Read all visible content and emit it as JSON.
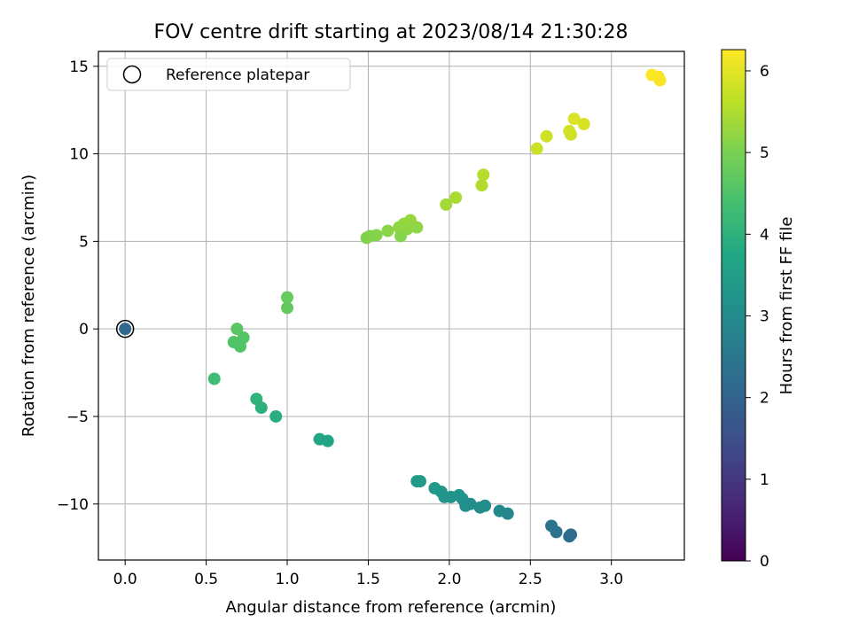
{
  "chart_data": {
    "type": "scatter",
    "title": "FOV centre drift starting at 2023/08/14 21:30:28",
    "xlabel": "Angular distance from reference (arcmin)",
    "ylabel": "Rotation from reference (arcmin)",
    "xlim": [
      -0.165,
      3.45
    ],
    "ylim": [
      -13.2,
      15.85
    ],
    "xticks": [
      0.0,
      0.5,
      1.0,
      1.5,
      2.0,
      2.5,
      3.0
    ],
    "xtick_labels": [
      "0.0",
      "0.5",
      "1.0",
      "1.5",
      "2.0",
      "2.5",
      "3.0"
    ],
    "yticks": [
      -10,
      -5,
      0,
      5,
      10,
      15
    ],
    "ytick_labels": [
      "−10",
      "−5",
      "0",
      "5",
      "10",
      "15"
    ],
    "grid": true,
    "legend": {
      "position": "top-left",
      "entries": [
        "Reference platepar"
      ]
    },
    "colorbar": {
      "label": "Hours from first FF file",
      "colormap": "viridis",
      "range": [
        0,
        6.26
      ],
      "ticks": [
        0,
        1,
        2,
        3,
        4,
        5,
        6
      ],
      "tick_labels": [
        "0",
        "1",
        "2",
        "3",
        "4",
        "5",
        "6"
      ]
    },
    "reference_point": {
      "x": 0.0,
      "y": 0.0,
      "c": 2.1
    },
    "points": [
      {
        "x": 3.25,
        "y": 14.5,
        "c": 6.23
      },
      {
        "x": 3.29,
        "y": 14.4,
        "c": 6.22
      },
      {
        "x": 3.3,
        "y": 14.2,
        "c": 6.21
      },
      {
        "x": 2.77,
        "y": 12.0,
        "c": 5.92
      },
      {
        "x": 2.83,
        "y": 11.7,
        "c": 5.88
      },
      {
        "x": 2.74,
        "y": 11.3,
        "c": 5.85
      },
      {
        "x": 2.75,
        "y": 11.1,
        "c": 5.83
      },
      {
        "x": 2.6,
        "y": 11.0,
        "c": 5.8
      },
      {
        "x": 2.54,
        "y": 10.3,
        "c": 5.77
      },
      {
        "x": 2.21,
        "y": 8.8,
        "c": 5.55
      },
      {
        "x": 2.2,
        "y": 8.2,
        "c": 5.52
      },
      {
        "x": 2.04,
        "y": 7.5,
        "c": 5.45
      },
      {
        "x": 1.98,
        "y": 7.1,
        "c": 5.4
      },
      {
        "x": 1.76,
        "y": 6.2,
        "c": 5.28
      },
      {
        "x": 1.72,
        "y": 6.0,
        "c": 5.25
      },
      {
        "x": 1.69,
        "y": 5.8,
        "c": 5.22
      },
      {
        "x": 1.74,
        "y": 5.7,
        "c": 5.2
      },
      {
        "x": 1.8,
        "y": 5.8,
        "c": 5.2
      },
      {
        "x": 1.62,
        "y": 5.6,
        "c": 5.15
      },
      {
        "x": 1.7,
        "y": 5.3,
        "c": 5.12
      },
      {
        "x": 1.55,
        "y": 5.35,
        "c": 5.1
      },
      {
        "x": 1.51,
        "y": 5.3,
        "c": 5.08
      },
      {
        "x": 1.49,
        "y": 5.2,
        "c": 5.06
      },
      {
        "x": 1.0,
        "y": 1.8,
        "c": 4.78
      },
      {
        "x": 1.0,
        "y": 1.2,
        "c": 4.74
      },
      {
        "x": 0.69,
        "y": 0.0,
        "c": 4.62
      },
      {
        "x": 0.73,
        "y": -0.5,
        "c": 4.58
      },
      {
        "x": 0.67,
        "y": -0.75,
        "c": 4.55
      },
      {
        "x": 0.71,
        "y": -1.0,
        "c": 4.52
      },
      {
        "x": 0.55,
        "y": -2.85,
        "c": 4.3
      },
      {
        "x": 0.81,
        "y": -4.0,
        "c": 4.05
      },
      {
        "x": 0.84,
        "y": -4.5,
        "c": 3.98
      },
      {
        "x": 0.93,
        "y": -5.0,
        "c": 3.9
      },
      {
        "x": 1.2,
        "y": -6.3,
        "c": 3.7
      },
      {
        "x": 1.25,
        "y": -6.4,
        "c": 3.66
      },
      {
        "x": 1.8,
        "y": -8.7,
        "c": 3.4
      },
      {
        "x": 1.82,
        "y": -8.7,
        "c": 3.38
      },
      {
        "x": 1.91,
        "y": -9.1,
        "c": 3.32
      },
      {
        "x": 1.95,
        "y": -9.3,
        "c": 3.28
      },
      {
        "x": 1.97,
        "y": -9.6,
        "c": 3.25
      },
      {
        "x": 2.01,
        "y": -9.6,
        "c": 3.22
      },
      {
        "x": 2.06,
        "y": -9.5,
        "c": 3.18
      },
      {
        "x": 2.08,
        "y": -9.7,
        "c": 3.15
      },
      {
        "x": 2.1,
        "y": -10.1,
        "c": 3.1
      },
      {
        "x": 2.13,
        "y": -10.0,
        "c": 3.08
      },
      {
        "x": 2.19,
        "y": -10.2,
        "c": 3.02
      },
      {
        "x": 2.22,
        "y": -10.1,
        "c": 3.0
      },
      {
        "x": 2.31,
        "y": -10.4,
        "c": 2.92
      },
      {
        "x": 2.36,
        "y": -10.55,
        "c": 2.88
      },
      {
        "x": 2.63,
        "y": -11.25,
        "c": 2.4
      },
      {
        "x": 2.66,
        "y": -11.6,
        "c": 2.35
      },
      {
        "x": 2.74,
        "y": -11.85,
        "c": 2.25
      },
      {
        "x": 2.75,
        "y": -11.75,
        "c": 2.22
      }
    ]
  }
}
